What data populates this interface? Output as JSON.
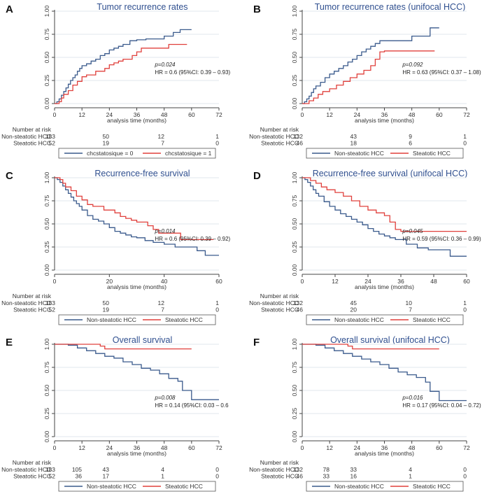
{
  "colors": {
    "nonsteatotic": "#3a5a8c",
    "steatotic": "#e0403c",
    "title": "#2f4f8f",
    "grid": "#e2e7ee",
    "axis": "#444444"
  },
  "chart_data": [
    {
      "type": "line",
      "letter": "A",
      "title": "Tumor recurrence rates",
      "xlabel": "analysis time (months)",
      "ylabel": "",
      "xlim": [
        0,
        72
      ],
      "xticks": [
        "0",
        "12",
        "24",
        "36",
        "48",
        "60",
        "72"
      ],
      "ylim": [
        0,
        1
      ],
      "yticks": [
        "0.00",
        "0.25",
        "0.50",
        "0.75",
        "1.00"
      ],
      "pvalue": "p=0.024",
      "hr": "HR = 0.6 (95%CI: 0.39 – 0.93)",
      "risk_title": "Number at risk",
      "risk_table": [
        {
          "label": "Non-steatotic HCC",
          "values": [
            "183",
            "50",
            "12",
            "1"
          ]
        },
        {
          "label": "Steatotic HCC",
          "values": [
            "52",
            "19",
            "7",
            "0"
          ]
        }
      ],
      "legend": [
        "chcstatosique = 0",
        "chcstatosique = 1"
      ],
      "series": [
        {
          "name": "chcstatosique = 0",
          "x": [
            0,
            1,
            2,
            3,
            4,
            5,
            6,
            7,
            8,
            9,
            10,
            11,
            12,
            14,
            16,
            18,
            20,
            22,
            24,
            26,
            28,
            30,
            33,
            36,
            40,
            44,
            48,
            52,
            55,
            60
          ],
          "y": [
            0,
            0.02,
            0.05,
            0.09,
            0.13,
            0.17,
            0.21,
            0.25,
            0.28,
            0.31,
            0.35,
            0.38,
            0.41,
            0.43,
            0.46,
            0.48,
            0.52,
            0.54,
            0.58,
            0.6,
            0.62,
            0.64,
            0.68,
            0.69,
            0.7,
            0.7,
            0.73,
            0.77,
            0.8,
            0.8
          ]
        },
        {
          "name": "chcstatosique = 1",
          "x": [
            0,
            2,
            3,
            4,
            6,
            8,
            10,
            12,
            14,
            18,
            22,
            24,
            26,
            28,
            30,
            34,
            36,
            38,
            42,
            46,
            50,
            58
          ],
          "y": [
            0,
            0.02,
            0.06,
            0.1,
            0.14,
            0.2,
            0.24,
            0.29,
            0.31,
            0.35,
            0.38,
            0.42,
            0.44,
            0.46,
            0.48,
            0.52,
            0.56,
            0.6,
            0.6,
            0.6,
            0.64,
            0.64
          ]
        }
      ]
    },
    {
      "type": "line",
      "letter": "B",
      "title": "Tumor recurrence rates (unifocal HCC)",
      "xlabel": "analysis time (months)",
      "ylabel": "",
      "xlim": [
        0,
        72
      ],
      "xticks": [
        "0",
        "12",
        "24",
        "36",
        "48",
        "60",
        "72"
      ],
      "ylim": [
        0,
        1
      ],
      "yticks": [
        "0.00",
        "0.25",
        "0.50",
        "0.75",
        "1.00"
      ],
      "pvalue": "p=0.092",
      "hr": "HR = 0.63 (95%CI: 0.37 – 1.08)",
      "risk_title": "Number at risk",
      "risk_table": [
        {
          "label": "Non-steatotic HCC",
          "values": [
            "132",
            "43",
            "9",
            "1"
          ]
        },
        {
          "label": "Steatotic HCC",
          "values": [
            "46",
            "18",
            "6",
            "0"
          ]
        }
      ],
      "legend": [
        "Non-steatotic HCC",
        "Steatotic HCC"
      ],
      "series": [
        {
          "name": "Non-steatotic HCC",
          "x": [
            0,
            1,
            2,
            3,
            4,
            5,
            6,
            8,
            10,
            12,
            14,
            16,
            18,
            20,
            22,
            24,
            26,
            28,
            30,
            32,
            34,
            38,
            42,
            48,
            56,
            60
          ],
          "y": [
            0,
            0.02,
            0.05,
            0.08,
            0.12,
            0.16,
            0.19,
            0.23,
            0.28,
            0.32,
            0.35,
            0.38,
            0.41,
            0.45,
            0.48,
            0.52,
            0.56,
            0.59,
            0.62,
            0.65,
            0.68,
            0.68,
            0.68,
            0.73,
            0.82,
            0.82
          ]
        },
        {
          "name": "Steatotic HCC",
          "x": [
            0,
            3,
            5,
            7,
            9,
            12,
            15,
            18,
            21,
            24,
            27,
            30,
            32,
            34,
            36,
            40,
            44,
            58
          ],
          "y": [
            0,
            0.03,
            0.06,
            0.1,
            0.13,
            0.16,
            0.2,
            0.24,
            0.28,
            0.32,
            0.36,
            0.41,
            0.48,
            0.56,
            0.57,
            0.57,
            0.57,
            0.57
          ]
        }
      ]
    },
    {
      "type": "line",
      "letter": "C",
      "title": "Recurrence-free survival",
      "xlabel": "analysis time (months)",
      "ylabel": "",
      "xlim": [
        0,
        60
      ],
      "xticks": [
        "0",
        "20",
        "40",
        "60"
      ],
      "ylim": [
        0,
        1
      ],
      "yticks": [
        "0.00",
        "0.25",
        "0.50",
        "0.75",
        "1.00"
      ],
      "pvalue": "p=0.014",
      "hr": "HR = 0.6 (95%CI: 0.39 – 0.92)",
      "risk_title": "Number at risk",
      "risk_table": [
        {
          "label": "Non-steatotic HCC",
          "values": [
            "183",
            "50",
            "12",
            "1"
          ]
        },
        {
          "label": "Steatotic HCC",
          "values": [
            "52",
            "19",
            "7",
            "0"
          ]
        }
      ],
      "legend": [
        "Non-steatotic HCC",
        "Steatotic HCC"
      ],
      "series": [
        {
          "name": "Non-steatotic HCC",
          "x": [
            0,
            1,
            2,
            3,
            4,
            5,
            6,
            7,
            8,
            9,
            10,
            12,
            14,
            16,
            18,
            20,
            22,
            24,
            26,
            28,
            30,
            33,
            36,
            40,
            44,
            48,
            52,
            55,
            60
          ],
          "y": [
            1,
            0.98,
            0.95,
            0.91,
            0.87,
            0.83,
            0.79,
            0.75,
            0.72,
            0.69,
            0.65,
            0.59,
            0.55,
            0.53,
            0.5,
            0.46,
            0.42,
            0.4,
            0.38,
            0.36,
            0.35,
            0.32,
            0.3,
            0.28,
            0.25,
            0.25,
            0.21,
            0.16,
            0.16
          ]
        },
        {
          "name": "Steatotic HCC",
          "x": [
            0,
            2,
            3,
            4,
            6,
            8,
            10,
            12,
            14,
            18,
            22,
            24,
            26,
            28,
            30,
            34,
            36,
            38,
            42,
            46,
            50,
            58
          ],
          "y": [
            1,
            0.98,
            0.94,
            0.9,
            0.86,
            0.8,
            0.76,
            0.71,
            0.69,
            0.65,
            0.62,
            0.58,
            0.56,
            0.54,
            0.52,
            0.48,
            0.44,
            0.4,
            0.4,
            0.33,
            0.33,
            0.33
          ]
        }
      ]
    },
    {
      "type": "line",
      "letter": "D",
      "title": "Recurrence-free survival (unifocal HCC)",
      "xlabel": "analysis time (months)",
      "ylabel": "",
      "xlim": [
        0,
        60
      ],
      "xticks": [
        "0",
        "12",
        "24",
        "36",
        "48",
        "60"
      ],
      "ylim": [
        0,
        1
      ],
      "yticks": [
        "0.00",
        "0.25",
        "0.50",
        "0.75",
        "1.00"
      ],
      "pvalue": "p=0.045",
      "hr": "HR = 0.59 (95%CI: 0.36 – 0.99)",
      "risk_title": "Number at risk",
      "risk_table": [
        {
          "label": "Non-steatotic HCC",
          "values": [
            "132",
            "45",
            "10",
            "1"
          ]
        },
        {
          "label": "Steatotic HCC",
          "values": [
            "46",
            "20",
            "7",
            "0"
          ]
        }
      ],
      "legend": [
        "Non-steatotic HCC",
        "Steatotic HCC"
      ],
      "series": [
        {
          "name": "Non-steatotic HCC",
          "x": [
            0,
            1,
            2,
            3,
            4,
            5,
            6,
            8,
            10,
            12,
            14,
            16,
            18,
            20,
            22,
            24,
            26,
            28,
            30,
            32,
            34,
            38,
            42,
            46,
            50,
            54,
            60
          ],
          "y": [
            1,
            0.98,
            0.95,
            0.91,
            0.87,
            0.83,
            0.8,
            0.74,
            0.69,
            0.65,
            0.61,
            0.58,
            0.55,
            0.52,
            0.49,
            0.45,
            0.42,
            0.39,
            0.37,
            0.35,
            0.33,
            0.28,
            0.24,
            0.22,
            0.22,
            0.15,
            0.15
          ]
        },
        {
          "name": "Steatotic HCC",
          "x": [
            0,
            3,
            5,
            7,
            9,
            12,
            15,
            18,
            21,
            24,
            27,
            30,
            32,
            34,
            36,
            40,
            44,
            60
          ],
          "y": [
            1,
            0.97,
            0.94,
            0.9,
            0.87,
            0.84,
            0.8,
            0.75,
            0.69,
            0.65,
            0.62,
            0.59,
            0.52,
            0.44,
            0.42,
            0.42,
            0.42,
            0.42
          ]
        }
      ]
    },
    {
      "type": "line",
      "letter": "E",
      "title": "Overall survival",
      "xlabel": "analysis time (months)",
      "ylabel": "",
      "xlim": [
        0,
        72
      ],
      "xticks": [
        "0",
        "12",
        "24",
        "36",
        "48",
        "60",
        "72"
      ],
      "ylim": [
        0,
        1
      ],
      "yticks": [
        "0.00",
        "0.25",
        "0.50",
        "0.75",
        "1.00"
      ],
      "pvalue": "p=0.008",
      "hr": "HR = 0.14 (95%CI: 0.03 – 0.6",
      "risk_title": "Number at risk",
      "risk_table": [
        {
          "label": "Non-steatotic HCC",
          "values": [
            "183",
            "105",
            "43",
            "4",
            "0"
          ]
        },
        {
          "label": "Steatotic HCC",
          "values": [
            "52",
            "36",
            "17",
            "1",
            "0"
          ]
        }
      ],
      "legend": [
        "Non-steatotic HCC",
        "Steatotic HCC"
      ],
      "series": [
        {
          "name": "Non-steatotic HCC",
          "x": [
            0,
            6,
            10,
            14,
            18,
            22,
            26,
            30,
            34,
            38,
            42,
            46,
            50,
            54,
            56,
            60,
            66,
            72
          ],
          "y": [
            1,
            0.99,
            0.96,
            0.93,
            0.9,
            0.87,
            0.85,
            0.81,
            0.78,
            0.74,
            0.72,
            0.68,
            0.63,
            0.6,
            0.5,
            0.4,
            0.4,
            0.4
          ]
        },
        {
          "name": "Steatotic HCC",
          "x": [
            0,
            10,
            20,
            22,
            40,
            60
          ],
          "y": [
            1,
            1,
            0.98,
            0.95,
            0.95,
            0.95
          ]
        }
      ]
    },
    {
      "type": "line",
      "letter": "F",
      "title": "Overall survival (unifocal HCC)",
      "xlabel": "analysis time (months)",
      "ylabel": "",
      "xlim": [
        0,
        72
      ],
      "xticks": [
        "0",
        "12",
        "24",
        "36",
        "48",
        "60",
        "72"
      ],
      "ylim": [
        0,
        1
      ],
      "yticks": [
        "0.00",
        "0.25",
        "0.50",
        "0.75",
        "1.00"
      ],
      "pvalue": "p=0.016",
      "hr": "HR = 0.17 (95%CI: 0.04 – 0.72)",
      "risk_title": "Number at risk",
      "risk_table": [
        {
          "label": "Non-steatotic HCC",
          "values": [
            "132",
            "78",
            "33",
            "4",
            "0"
          ]
        },
        {
          "label": "Steatotic HCC",
          "values": [
            "46",
            "33",
            "16",
            "1",
            "0"
          ]
        }
      ],
      "legend": [
        "Non-steatotic HCC",
        "Steatotic HCC"
      ],
      "series": [
        {
          "name": "Non-steatotic HCC",
          "x": [
            0,
            6,
            10,
            14,
            18,
            22,
            26,
            30,
            34,
            38,
            42,
            46,
            50,
            54,
            56,
            60,
            66,
            72
          ],
          "y": [
            1,
            0.99,
            0.96,
            0.93,
            0.9,
            0.87,
            0.84,
            0.81,
            0.78,
            0.74,
            0.7,
            0.67,
            0.64,
            0.59,
            0.49,
            0.39,
            0.39,
            0.39
          ]
        },
        {
          "name": "Steatotic HCC",
          "x": [
            0,
            10,
            20,
            22,
            40,
            60
          ],
          "y": [
            1,
            1,
            0.98,
            0.95,
            0.95,
            0.95
          ]
        }
      ]
    }
  ]
}
